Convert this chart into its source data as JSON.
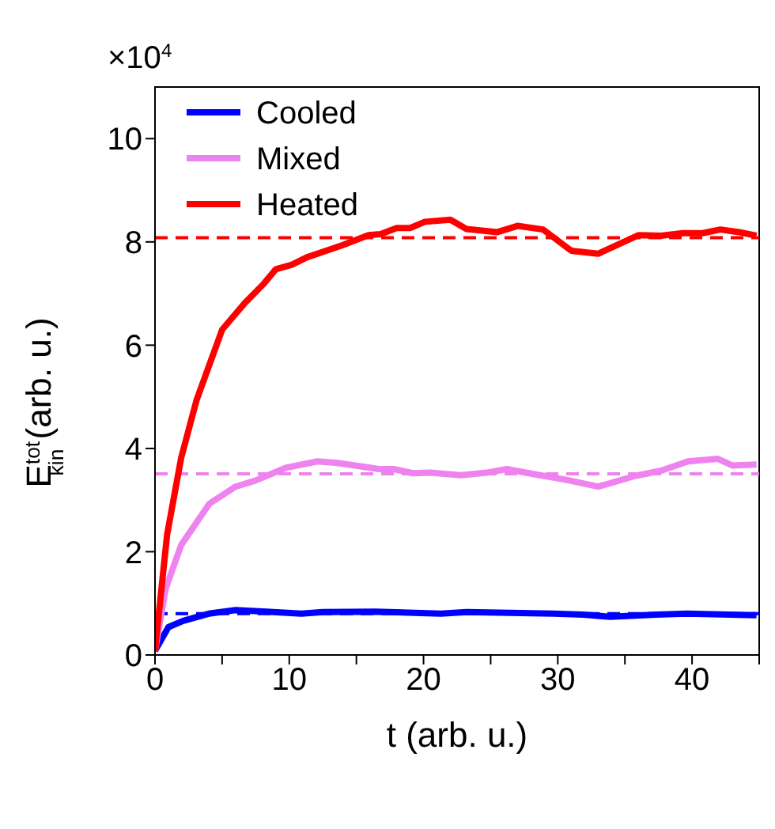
{
  "chart_data": {
    "type": "line",
    "xlabel": "t (arb. u.)",
    "ylabel": "E$^{tot}$$_{kin}$ (arb. u.)",
    "annotations": [
      "×10$^{4}$"
    ],
    "xlim": [
      0,
      45
    ],
    "xticks": [
      0,
      {
        "value": 5,
        "label": null
      },
      10,
      {
        "value": 15,
        "label": null
      },
      20,
      {
        "value": 25,
        "label": null
      },
      30,
      {
        "value": 35,
        "label": null
      },
      40,
      {
        "value": 45,
        "label": null
      }
    ],
    "ylim": [
      0,
      11
    ],
    "yticks": [
      0,
      2,
      4,
      6,
      8,
      10
    ],
    "legend": "top left",
    "line_style": "solid",
    "marker": "none",
    "series": [
      {
        "name": "Cooled",
        "color": "#0000ff",
        "x": [
          0,
          1,
          2.1,
          4,
          6,
          8.3,
          10.9,
          12.5,
          16.4,
          21.3,
          23.2,
          29.7,
          31.9,
          33.9,
          37.3,
          39.6,
          44.8
        ],
        "values": [
          0.08,
          0.54,
          0.66,
          0.8,
          0.87,
          0.84,
          0.8,
          0.83,
          0.84,
          0.8,
          0.83,
          0.8,
          0.78,
          0.74,
          0.78,
          0.8,
          0.77
        ]
      },
      {
        "name": "Mixed",
        "color": "#ee82ee",
        "x": [
          0,
          0.8,
          1.95,
          4.05,
          6,
          7.5,
          9.8,
          12.1,
          13.6,
          16.7,
          17.8,
          19.2,
          20.5,
          22.8,
          24.7,
          26.2,
          28.5,
          30.5,
          33,
          35.8,
          37.7,
          39.7,
          41.9,
          43,
          44.8
        ],
        "values": [
          0.08,
          1.29,
          2.13,
          2.93,
          3.26,
          3.38,
          3.63,
          3.75,
          3.72,
          3.6,
          3.6,
          3.52,
          3.53,
          3.48,
          3.53,
          3.6,
          3.49,
          3.4,
          3.26,
          3.47,
          3.57,
          3.75,
          3.8,
          3.67,
          3.69
        ]
      },
      {
        "name": "Heated",
        "color": "#ff0000",
        "x": [
          0,
          0.9,
          1.95,
          3.1,
          5,
          6.7,
          8.1,
          9,
          10.2,
          11.3,
          14,
          15.9,
          16.8,
          18,
          19,
          20.1,
          22,
          23.2,
          25.5,
          27,
          28.9,
          31,
          33,
          36,
          37.7,
          39.3,
          40.8,
          42.1,
          43.5,
          44.8
        ],
        "values": [
          0.08,
          2.33,
          3.82,
          4.94,
          6.3,
          6.82,
          7.19,
          7.47,
          7.56,
          7.7,
          7.94,
          8.13,
          8.15,
          8.27,
          8.27,
          8.39,
          8.43,
          8.25,
          8.19,
          8.31,
          8.24,
          7.83,
          7.77,
          8.13,
          8.12,
          8.17,
          8.17,
          8.24,
          8.19,
          8.12
        ]
      }
    ],
    "ref_lines": [
      {
        "axis": "y",
        "value": 0.8,
        "color": "#0000ff",
        "line_style": "dashed"
      },
      {
        "axis": "y",
        "value": 3.51,
        "color": "#ee82ee",
        "line_style": "dashed"
      },
      {
        "axis": "y",
        "value": 8.08,
        "color": "#ff0000",
        "line_style": "dashed"
      }
    ]
  }
}
